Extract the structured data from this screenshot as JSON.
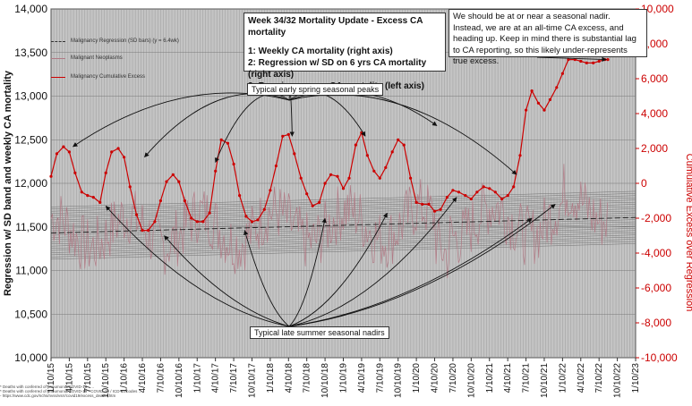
{
  "chart_data": {
    "type": "line",
    "title": "Week 34/32 Mortality Update - Excess CA mortality",
    "subtitle_lines": [
      "1: Weekly CA mortality (right axis)",
      "2: Regression w/ SD on 6 yrs CA mortality (right axis)",
      "3: Running excess CA mortality (left axis)"
    ],
    "note": "We should be at or near a seasonal nadir. Instead, we are at an all-time CA excess, and heading up. Keep in mind there is substantial lag to CA reporting, so this likely under-represents true excess.",
    "ylabel_left": "Regression w/ SD band and weekly CA mortality",
    "ylabel_right": "Cumulative Excess over Regression",
    "ylim_left": [
      10000,
      14000
    ],
    "yticks_left": [
      "10,000",
      "10,500",
      "11,000",
      "11,500",
      "12,000",
      "12,500",
      "13,000",
      "13,500",
      "14,000"
    ],
    "ylim_right": [
      -10000,
      10000
    ],
    "yticks_right": [
      "-10,000",
      "-8,000",
      "-6,000",
      "-4,000",
      "-2,000",
      "0",
      "2,000",
      "4,000",
      "6,000",
      "8,000",
      "10,000"
    ],
    "xlim": [
      2015.0,
      2023.0
    ],
    "xticks": [
      {
        "x": 2015.0,
        "label": "1/10/15"
      },
      {
        "x": 2015.25,
        "label": "4/10/15"
      },
      {
        "x": 2015.5,
        "label": "7/10/15"
      },
      {
        "x": 2015.75,
        "label": "10/10/15"
      },
      {
        "x": 2016.0,
        "label": "1/10/16"
      },
      {
        "x": 2016.25,
        "label": "4/10/16"
      },
      {
        "x": 2016.5,
        "label": "7/10/16"
      },
      {
        "x": 2016.75,
        "label": "10/10/16"
      },
      {
        "x": 2017.0,
        "label": "1/10/17"
      },
      {
        "x": 2017.25,
        "label": "4/10/17"
      },
      {
        "x": 2017.5,
        "label": "7/10/17"
      },
      {
        "x": 2017.75,
        "label": "10/10/17"
      },
      {
        "x": 2018.0,
        "label": "1/10/18"
      },
      {
        "x": 2018.25,
        "label": "4/10/18"
      },
      {
        "x": 2018.5,
        "label": "7/10/18"
      },
      {
        "x": 2018.75,
        "label": "10/10/18"
      },
      {
        "x": 2019.0,
        "label": "1/10/19"
      },
      {
        "x": 2019.25,
        "label": "4/10/19"
      },
      {
        "x": 2019.5,
        "label": "7/10/19"
      },
      {
        "x": 2019.75,
        "label": "10/10/19"
      },
      {
        "x": 2020.0,
        "label": "1/10/20"
      },
      {
        "x": 2020.25,
        "label": "4/10/20"
      },
      {
        "x": 2020.5,
        "label": "7/10/20"
      },
      {
        "x": 2020.75,
        "label": "10/10/20"
      },
      {
        "x": 2021.0,
        "label": "1/10/21"
      },
      {
        "x": 2021.25,
        "label": "4/10/21"
      },
      {
        "x": 2021.5,
        "label": "7/10/21"
      },
      {
        "x": 2021.75,
        "label": "10/10/21"
      },
      {
        "x": 2022.0,
        "label": "1/10/22"
      },
      {
        "x": 2022.25,
        "label": "4/10/22"
      },
      {
        "x": 2022.5,
        "label": "7/10/22"
      },
      {
        "x": 2022.75,
        "label": "10/10/22"
      },
      {
        "x": 2023.0,
        "label": "1/10/23"
      }
    ],
    "regression": {
      "name": "Malignancy Regression (SD bars) (y = 6.4wk)",
      "axis": "left",
      "x": [
        2015.0,
        2022.62
      ],
      "y": [
        11430,
        11600
      ],
      "sd_band": 300
    },
    "weekly": {
      "name": "Malignant Neoplasms",
      "axis": "left",
      "color": "#b07a85"
    },
    "excess": {
      "name": "Malignancy Cumulative Excess",
      "axis": "right",
      "color": "#cc0000",
      "x": [
        2015.0,
        2015.08,
        2015.17,
        2015.25,
        2015.33,
        2015.42,
        2015.5,
        2015.58,
        2015.67,
        2015.75,
        2015.83,
        2015.92,
        2016.0,
        2016.08,
        2016.17,
        2016.25,
        2016.33,
        2016.42,
        2016.5,
        2016.58,
        2016.67,
        2016.75,
        2016.83,
        2016.92,
        2017.0,
        2017.08,
        2017.17,
        2017.25,
        2017.33,
        2017.42,
        2017.5,
        2017.58,
        2017.67,
        2017.75,
        2017.83,
        2017.92,
        2018.0,
        2018.08,
        2018.17,
        2018.25,
        2018.33,
        2018.42,
        2018.5,
        2018.58,
        2018.67,
        2018.75,
        2018.83,
        2018.92,
        2019.0,
        2019.08,
        2019.17,
        2019.25,
        2019.33,
        2019.42,
        2019.5,
        2019.58,
        2019.67,
        2019.75,
        2019.83,
        2019.92,
        2020.0,
        2020.08,
        2020.17,
        2020.25,
        2020.33,
        2020.42,
        2020.5,
        2020.58,
        2020.67,
        2020.75,
        2020.83,
        2020.92,
        2021.0,
        2021.08,
        2021.17,
        2021.25,
        2021.33,
        2021.42,
        2021.5,
        2021.58,
        2021.67,
        2021.75,
        2021.83,
        2021.92,
        2022.0,
        2022.08,
        2022.17,
        2022.25,
        2022.33,
        2022.42,
        2022.5,
        2022.58,
        2022.62
      ],
      "y": [
        400,
        1700,
        2100,
        1800,
        600,
        -500,
        -700,
        -800,
        -1100,
        600,
        1800,
        2000,
        1500,
        -200,
        -1800,
        -2700,
        -2700,
        -2200,
        -1000,
        100,
        500,
        100,
        -1000,
        -2000,
        -2200,
        -2200,
        -1700,
        700,
        2500,
        2300,
        1100,
        -700,
        -1900,
        -2200,
        -2100,
        -1500,
        -400,
        1000,
        2700,
        2800,
        1700,
        300,
        -600,
        -1300,
        -1100,
        0,
        500,
        400,
        -300,
        300,
        2200,
        2900,
        1600,
        700,
        300,
        900,
        1800,
        2500,
        2200,
        300,
        -1100,
        -1200,
        -1200,
        -1600,
        -1500,
        -800,
        -400,
        -500,
        -700,
        -900,
        -500,
        -200,
        -300,
        -500,
        -900,
        -700,
        -200,
        1600,
        4200,
        5300,
        4600,
        4200,
        4800,
        5500,
        6300,
        7100,
        7100,
        7000,
        6900,
        6900,
        7000,
        7100,
        7100
      ]
    }
  },
  "legend": {
    "items": [
      {
        "label": "Malignancy Regression (SD bars) (y = 6.4wk)",
        "color": "#333333"
      },
      {
        "label": "Malignant Neoplasms",
        "color": "#b07a85"
      },
      {
        "label": "Malignancy Cumulative Excess",
        "color": "#cc0000"
      }
    ]
  },
  "annotations": {
    "peaks": "Typical early spring seasonal peaks",
    "nadirs": "Typical late summer seasonal nadirs"
  },
  "footer": {
    "line1": "* Deaths with conferred of pneumonia/COVID-19 - ...",
    "line2": "* Deaths with conferred of pneumonia/COVID-19 - COVID-19 / ICD-10 codes ...",
    "line3": "- https://www.cdc.gov/nchs/nvss/vsrr/covid19/excess_deaths.htm"
  },
  "colors": {
    "plot_bg": "#c4c4c4",
    "grid": "#8c8c8c",
    "excess": "#cc0000",
    "right_axis_text": "#cc0000"
  }
}
